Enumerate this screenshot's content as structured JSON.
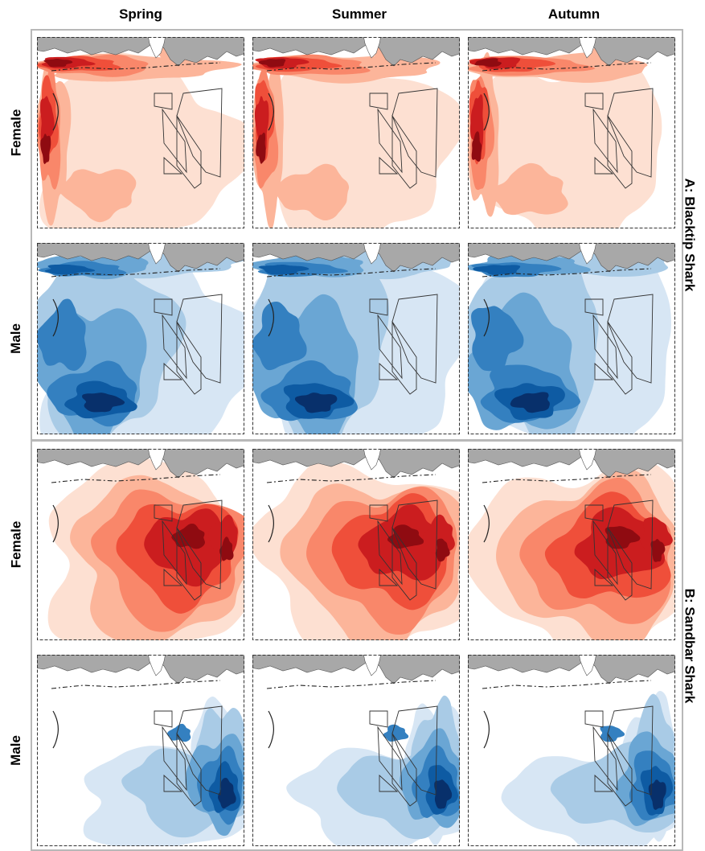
{
  "columns": [
    "Spring",
    "Summer",
    "Autumn"
  ],
  "groups": [
    {
      "label": "A: Blacktip Shark",
      "rows": [
        {
          "label": "Female",
          "scheme": "red",
          "panels": [
            {
              "season": "Spring",
              "peak_area": "west-coast"
            },
            {
              "season": "Summer",
              "peak_area": "west-coast"
            },
            {
              "season": "Autumn",
              "peak_area": "west-coast"
            }
          ]
        },
        {
          "label": "Male",
          "scheme": "blue",
          "panels": [
            {
              "season": "Spring",
              "peak_area": "southwest"
            },
            {
              "season": "Summer",
              "peak_area": "southwest"
            },
            {
              "season": "Autumn",
              "peak_area": "southwest"
            }
          ]
        }
      ]
    },
    {
      "label": "B: Sandbar Shark",
      "rows": [
        {
          "label": "Female",
          "scheme": "red",
          "panels": [
            {
              "season": "Spring",
              "peak_area": "center-east"
            },
            {
              "season": "Summer",
              "peak_area": "center-east"
            },
            {
              "season": "Autumn",
              "peak_area": "center-east"
            }
          ]
        },
        {
          "label": "Male",
          "scheme": "blue",
          "panels": [
            {
              "season": "Spring",
              "peak_area": "east"
            },
            {
              "season": "Summer",
              "peak_area": "east"
            },
            {
              "season": "Autumn",
              "peak_area": "east"
            }
          ]
        }
      ]
    }
  ],
  "colors": {
    "red": [
      "#fde0d2",
      "#fcb59a",
      "#f9876a",
      "#ef4f3a",
      "#cb1d1f",
      "#8f0b11"
    ],
    "blue": [
      "#d7e6f4",
      "#a9cbe6",
      "#6aa6d4",
      "#3480c0",
      "#0e5ba3",
      "#08306b"
    ],
    "land": "#a8a8a8",
    "group_border": "#b8b8b8"
  }
}
